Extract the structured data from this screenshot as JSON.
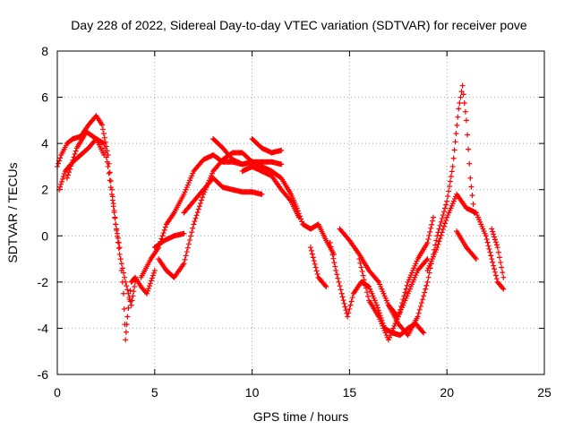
{
  "chart_data": {
    "type": "scatter",
    "title": "Day 228 of 2022, Sidereal Day-to-day VTEC variation (SDTVAR) for receiver pove",
    "xlabel": "GPS time / hours",
    "ylabel": "SDTVAR / TECUs",
    "xlim": [
      0,
      25
    ],
    "ylim": [
      -6,
      8
    ],
    "xticks": [
      0,
      5,
      10,
      15,
      20,
      25
    ],
    "yticks": [
      -6,
      -4,
      -2,
      0,
      2,
      4,
      6,
      8
    ],
    "grid": true,
    "marker": "+",
    "series": [
      {
        "name": "pove",
        "color": "#ff0000",
        "segments": [
          {
            "x": [
              0.0,
              0.2,
              0.5,
              0.8,
              1.2,
              1.6,
              2.0,
              2.3,
              2.6,
              2.8,
              3.0,
              3.2,
              3.4,
              3.5,
              3.6,
              3.8,
              4.0,
              4.3,
              4.6,
              5.0
            ],
            "y": [
              3.0,
              3.5,
              4.0,
              4.2,
              4.3,
              4.8,
              5.2,
              4.8,
              3.5,
              2.0,
              0.5,
              -0.5,
              -2.5,
              -4.5,
              -3.5,
              -2.0,
              -1.8,
              -2.2,
              -2.5,
              -1.5
            ]
          },
          {
            "x": [
              0.1,
              0.4,
              0.8,
              1.2,
              1.6,
              2.0,
              2.4,
              2.6,
              2.8,
              3.0,
              3.2,
              3.5,
              3.8,
              4.0
            ],
            "y": [
              2.0,
              2.8,
              3.2,
              3.5,
              3.8,
              4.2,
              4.0,
              3.0,
              1.8,
              0.5,
              -0.8,
              -2.0,
              -3.0,
              -2.0
            ]
          },
          {
            "x": [
              0.5,
              1.0,
              1.5,
              2.0,
              2.4
            ],
            "y": [
              2.5,
              3.8,
              4.5,
              4.2,
              3.5
            ]
          },
          {
            "x": [
              4.3,
              4.8,
              5.2,
              5.6,
              6.0,
              6.5,
              7.0,
              7.5,
              8.0,
              8.5,
              9.0,
              9.5,
              10.0,
              10.5,
              11.0,
              11.5,
              12.0,
              12.3,
              12.6,
              13.0,
              13.4,
              13.8,
              14.2
            ],
            "y": [
              -1.8,
              -1.0,
              -0.5,
              0.5,
              1.0,
              1.8,
              2.8,
              3.3,
              3.5,
              3.2,
              3.2,
              3.1,
              3.2,
              3.0,
              2.8,
              2.5,
              1.8,
              1.2,
              0.5,
              0.3,
              0.5,
              -0.2,
              -0.8
            ]
          },
          {
            "x": [
              5.2,
              5.6,
              6.0,
              6.5,
              7.0,
              7.5,
              8.0,
              8.5,
              9.0,
              9.5,
              10.0
            ],
            "y": [
              -1.0,
              -1.5,
              -1.8,
              -1.2,
              0.5,
              1.8,
              2.8,
              3.3,
              3.6,
              3.6,
              3.2
            ]
          },
          {
            "x": [
              5.0,
              5.5,
              6.0,
              6.5
            ],
            "y": [
              -0.5,
              -0.2,
              0.0,
              0.1
            ]
          },
          {
            "x": [
              6.5,
              7.0,
              7.5,
              8.0,
              8.5,
              9.0,
              9.5,
              10.0,
              10.5
            ],
            "y": [
              1.0,
              1.5,
              2.0,
              2.5,
              2.1,
              2.0,
              1.9,
              1.9,
              1.8
            ]
          },
          {
            "x": [
              8.0,
              8.5,
              9.0,
              9.5,
              10.0,
              10.5,
              11.0,
              11.5
            ],
            "y": [
              4.2,
              3.8,
              3.3,
              3.1,
              3.2,
              3.2,
              3.2,
              3.1
            ]
          },
          {
            "x": [
              10.0,
              10.5,
              11.0,
              11.5
            ],
            "y": [
              4.2,
              3.8,
              3.6,
              3.7
            ]
          },
          {
            "x": [
              9.5,
              10.0,
              10.5,
              11.0,
              11.5,
              12.0,
              12.4
            ],
            "y": [
              2.8,
              3.0,
              2.8,
              2.6,
              2.0,
              1.5,
              0.8
            ]
          },
          {
            "x": [
              13.0,
              13.4,
              13.8
            ],
            "y": [
              -0.5,
              -1.8,
              -2.2
            ]
          },
          {
            "x": [
              14.0,
              14.3,
              14.6,
              14.9,
              15.2,
              15.6,
              16.0,
              16.4,
              16.8,
              17.2,
              17.6,
              18.0,
              18.4,
              18.8
            ],
            "y": [
              -0.3,
              -1.5,
              -2.5,
              -3.5,
              -2.5,
              -2.0,
              -2.2,
              -3.0,
              -4.0,
              -4.2,
              -4.3,
              -4.0,
              -3.8,
              -4.2
            ]
          },
          {
            "x": [
              14.5,
              15.0,
              15.5,
              16.0,
              16.5,
              17.0,
              17.5,
              18.0,
              18.5,
              19.0,
              19.3
            ],
            "y": [
              0.3,
              -0.2,
              -0.8,
              -1.5,
              -2.0,
              -3.0,
              -3.5,
              -2.0,
              -1.0,
              -0.3,
              0.8
            ]
          },
          {
            "x": [
              15.5,
              16.0,
              16.5,
              17.0,
              17.5,
              18.0,
              18.5,
              19.0
            ],
            "y": [
              -1.0,
              -2.8,
              -3.5,
              -4.5,
              -3.5,
              -2.5,
              -1.5,
              -1.0
            ]
          },
          {
            "x": [
              17.0,
              17.5,
              18.0,
              18.5,
              19.0,
              19.5,
              20.0,
              20.3,
              20.6,
              20.8,
              21.0,
              21.2,
              21.4
            ],
            "y": [
              -3.0,
              -3.8,
              -4.3,
              -3.5,
              -2.0,
              0.0,
              1.5,
              3.0,
              5.5,
              6.5,
              5.0,
              2.5,
              1.0
            ]
          },
          {
            "x": [
              19.0,
              19.5,
              20.0,
              20.5,
              21.0,
              21.5,
              22.0,
              22.3,
              22.6,
              22.9
            ],
            "y": [
              -1.5,
              -0.5,
              0.8,
              1.8,
              1.2,
              1.0,
              0.0,
              -1.0,
              -2.0,
              -2.3
            ]
          },
          {
            "x": [
              20.5,
              21.0,
              21.5
            ],
            "y": [
              0.2,
              -0.5,
              -1.0
            ]
          },
          {
            "x": [
              22.3,
              22.6,
              22.9
            ],
            "y": [
              0.3,
              -0.5,
              -1.8
            ]
          }
        ]
      }
    ]
  }
}
